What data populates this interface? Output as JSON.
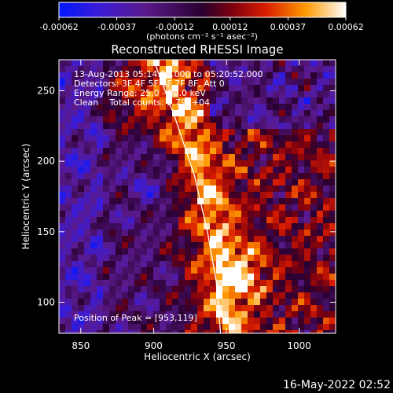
{
  "chart_data": {
    "type": "heatmap",
    "title": "Reconstructed RHESSI Image",
    "xlabel": "Heliocentric X (arcsec)",
    "ylabel": "Heliocentric Y (arcsec)",
    "xlim": [
      835,
      1025
    ],
    "ylim": [
      78,
      272
    ],
    "x_ticks": [
      850,
      900,
      950,
      1000
    ],
    "y_ticks": [
      100,
      150,
      200,
      250
    ],
    "colorbar": {
      "range": [
        -0.00062,
        0.00062
      ],
      "ticks": [
        "-0.00062",
        "-0.00037",
        "-0.00012",
        "0.00012",
        "0.00037",
        "0.00062"
      ],
      "tick_values": [
        -0.00062,
        -0.00037,
        -0.00012,
        0.00012,
        0.00037,
        0.00062
      ],
      "units_label": "(photons cm⁻² s⁻¹ asec⁻²)"
    },
    "annotations": [
      "13-Aug-2013 05:14:52.000 to 05:20:52.000",
      "Detectors: 3F 4F 5F 6F 7F 8F, Att 0",
      "Energy Range: 25.0 - 50.0 keV",
      "Clean    Total counts: 2.79E+04"
    ],
    "peak_label": "Position of Peak = [953,119]",
    "peak": [
      953,
      119
    ],
    "limb_curve": [
      [
        900,
        272
      ],
      [
        915,
        230
      ],
      [
        928,
        190
      ],
      [
        937,
        150
      ],
      [
        943,
        115
      ],
      [
        946,
        78
      ]
    ]
  },
  "footer": {
    "timestamp": "16-May-2022 02:52"
  }
}
